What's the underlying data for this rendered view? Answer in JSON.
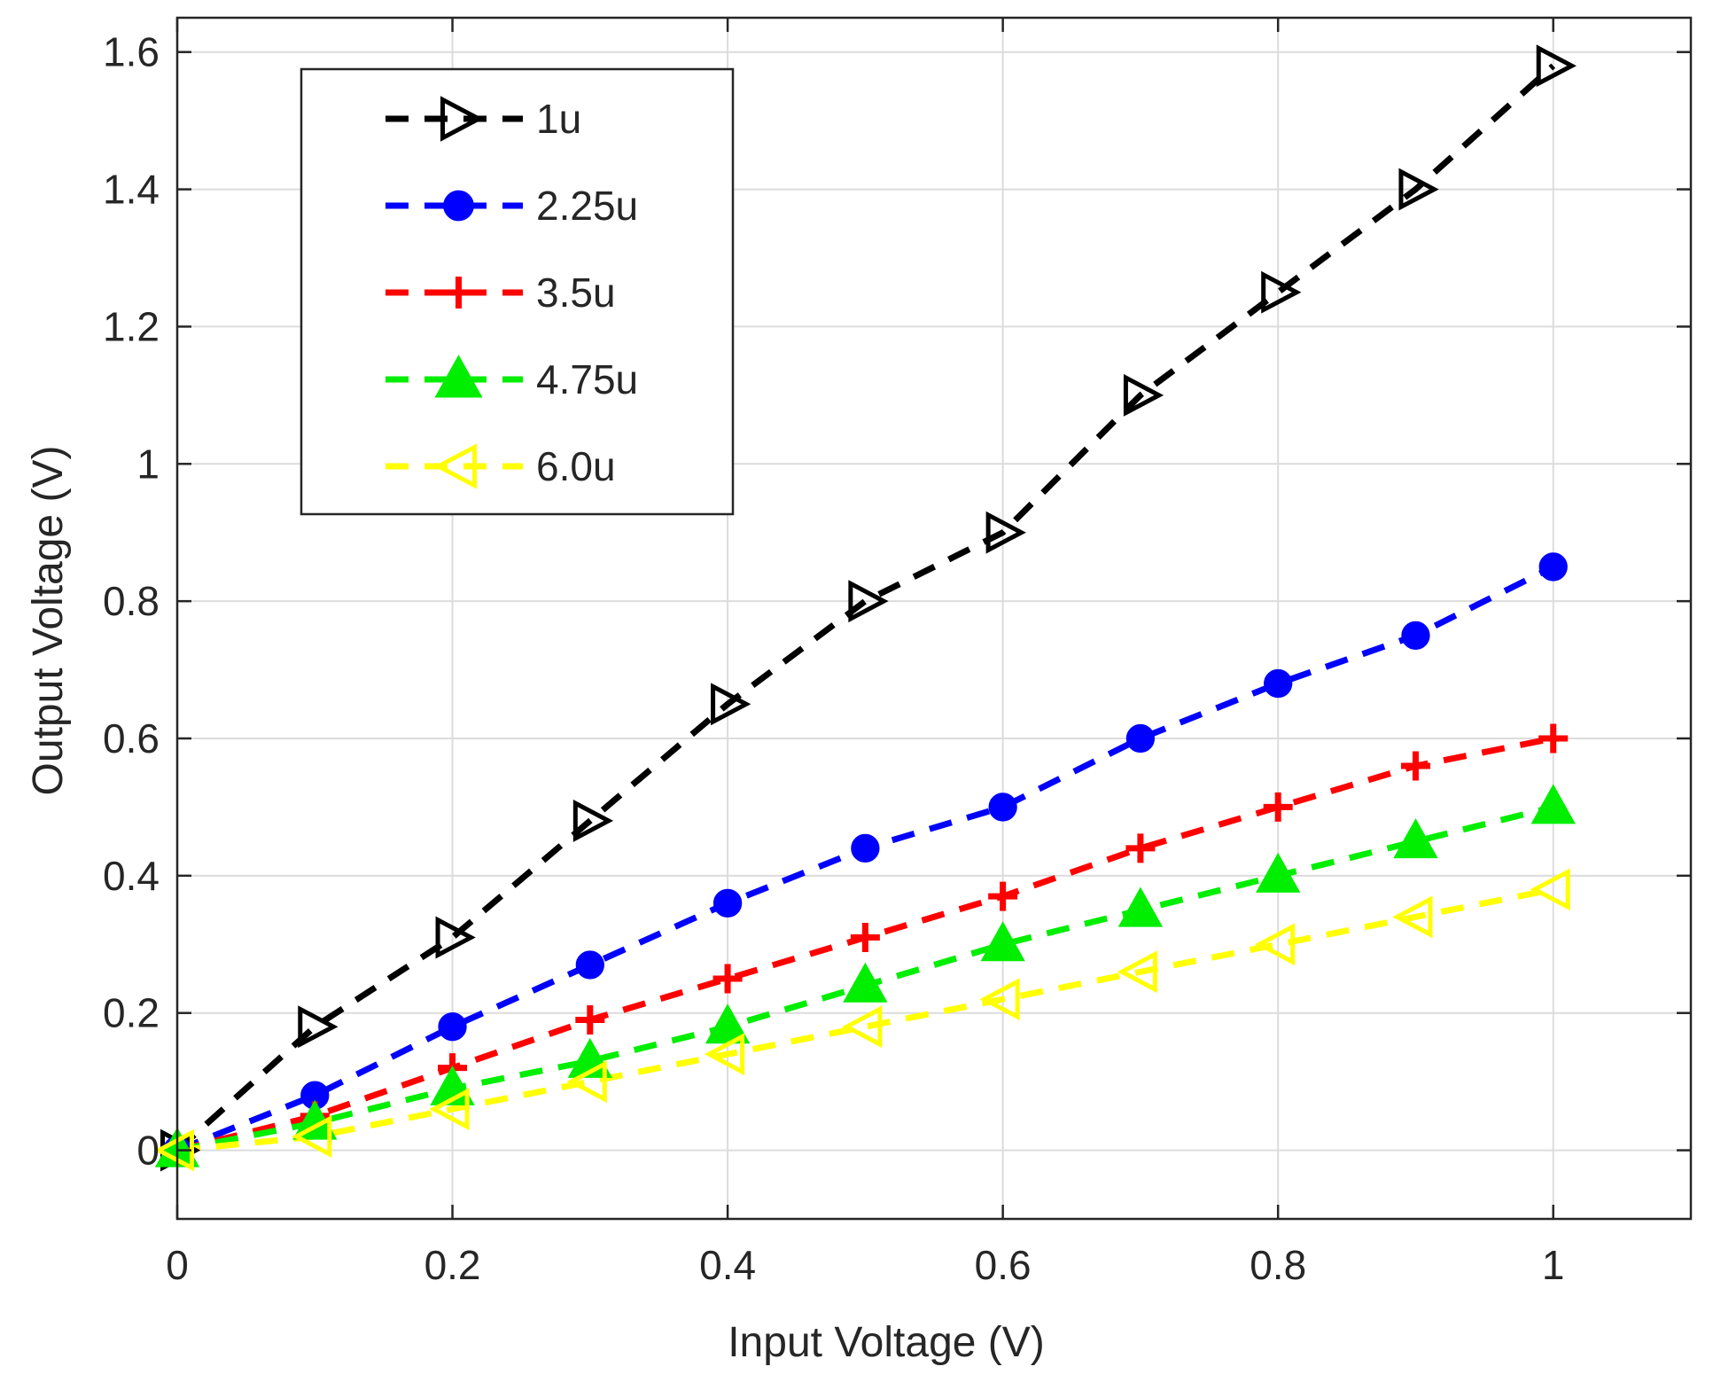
{
  "chart_data": {
    "type": "line",
    "title": "",
    "xlabel": "Input Voltage (V)",
    "ylabel": "Output Voltage (V)",
    "xlim": [
      0,
      1.1
    ],
    "ylim": [
      -0.1,
      1.65
    ],
    "grid": true,
    "legend_position": "top-left",
    "x_ticks": [
      0,
      0.2,
      0.4,
      0.6,
      0.8,
      1
    ],
    "x_tick_labels": [
      "0",
      "0.2",
      "0.4",
      "0.6",
      "0.8",
      "1"
    ],
    "y_ticks": [
      0,
      0.2,
      0.4,
      0.6,
      0.8,
      1,
      1.2,
      1.4,
      1.6
    ],
    "y_tick_labels": [
      "0",
      "0.2",
      "0.4",
      "0.6",
      "0.8",
      "1",
      "1.2",
      "1.4",
      "1.6"
    ],
    "x": [
      0,
      0.1,
      0.2,
      0.3,
      0.4,
      0.5,
      0.6,
      0.7,
      0.8,
      0.9,
      1.0
    ],
    "series": [
      {
        "name": "1u",
        "color": "#000000",
        "marker": "triangle-right",
        "filled": false,
        "values": [
          0,
          0.18,
          0.31,
          0.48,
          0.65,
          0.8,
          0.9,
          1.1,
          1.25,
          1.4,
          1.58
        ]
      },
      {
        "name": "2.25u",
        "color": "#0000ff",
        "marker": "circle",
        "filled": true,
        "values": [
          0,
          0.08,
          0.18,
          0.27,
          0.36,
          0.44,
          0.5,
          0.6,
          0.68,
          0.75,
          0.85
        ]
      },
      {
        "name": "3.5u",
        "color": "#ff0000",
        "marker": "plus",
        "filled": true,
        "values": [
          0,
          0.05,
          0.12,
          0.19,
          0.25,
          0.31,
          0.37,
          0.44,
          0.5,
          0.56,
          0.6
        ]
      },
      {
        "name": "4.75u",
        "color": "#00ee00",
        "marker": "triangle-up",
        "filled": true,
        "values": [
          0,
          0.04,
          0.09,
          0.13,
          0.18,
          0.24,
          0.3,
          0.35,
          0.4,
          0.45,
          0.5
        ]
      },
      {
        "name": "6.0u",
        "color": "#ffff00",
        "marker": "triangle-left",
        "filled": false,
        "values": [
          0,
          0.02,
          0.06,
          0.1,
          0.14,
          0.18,
          0.22,
          0.26,
          0.3,
          0.34,
          0.38
        ]
      }
    ]
  }
}
